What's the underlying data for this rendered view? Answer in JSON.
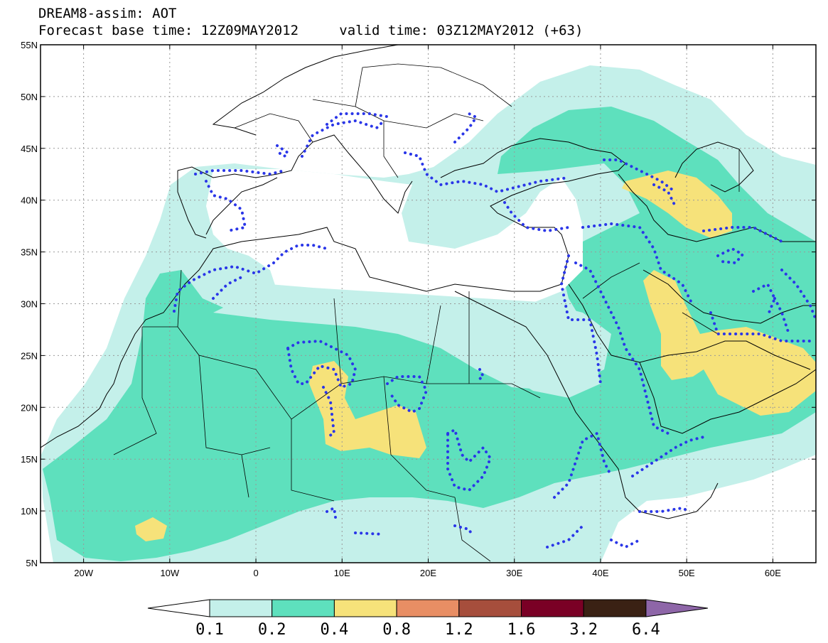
{
  "title": {
    "line1": "DREAM8-assim: AOT",
    "base_label": "Forecast base time: 12Z09MAY2012",
    "valid_label": "valid time: 03Z12MAY2012 (+63)"
  },
  "map": {
    "lon_range": [
      -25,
      65
    ],
    "lat_range": [
      5,
      55
    ],
    "lat_ticks": [
      {
        "value": 55,
        "label": "55N"
      },
      {
        "value": 50,
        "label": "50N"
      },
      {
        "value": 45,
        "label": "45N"
      },
      {
        "value": 40,
        "label": "40N"
      },
      {
        "value": 35,
        "label": "35N"
      },
      {
        "value": 30,
        "label": "30N"
      },
      {
        "value": 25,
        "label": "25N"
      },
      {
        "value": 20,
        "label": "20N"
      },
      {
        "value": 15,
        "label": "15N"
      },
      {
        "value": 10,
        "label": "10N"
      },
      {
        "value": 5,
        "label": "5N"
      }
    ],
    "lon_ticks": [
      {
        "value": -20,
        "label": "20W"
      },
      {
        "value": -10,
        "label": "10W"
      },
      {
        "value": 0,
        "label": "0"
      },
      {
        "value": 10,
        "label": "10E"
      },
      {
        "value": 20,
        "label": "20E"
      },
      {
        "value": 30,
        "label": "30E"
      },
      {
        "value": 40,
        "label": "40E"
      },
      {
        "value": 50,
        "label": "50E"
      },
      {
        "value": 60,
        "label": "60E"
      }
    ],
    "grid": true
  },
  "colorbar": {
    "levels": [
      "0.1",
      "0.2",
      "0.4",
      "0.8",
      "1.2",
      "1.6",
      "3.2",
      "6.4"
    ],
    "colors": [
      "#ffffff",
      "#c4f0ea",
      "#5ee0bd",
      "#f6e27a",
      "#e88e64",
      "#a64e3c",
      "#7a0025",
      "#3a2114",
      "#8e66a8"
    ]
  }
}
